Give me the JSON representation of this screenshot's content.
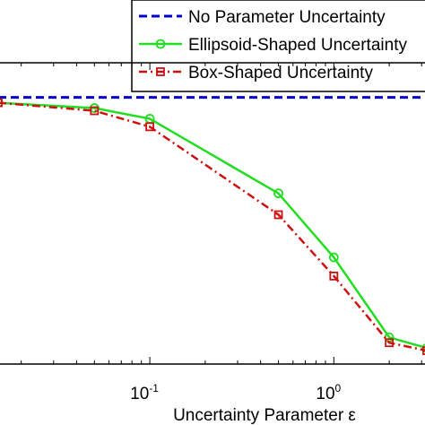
{
  "chart_data": {
    "type": "line",
    "xlabel": "Uncertainty Parameter ε",
    "ylabel": "",
    "x_scale": "log",
    "xlim": [
      0.015,
      3.2
    ],
    "ylim": [
      0,
      1.13
    ],
    "grid": false,
    "legend_placement": "top-right",
    "x_ticks": [
      {
        "value": 0.1,
        "base": "10",
        "exponent": "-1"
      },
      {
        "value": 1,
        "base": "10",
        "exponent": "0"
      }
    ],
    "series": [
      {
        "name": "No Parameter Uncertainty",
        "color": "#0000cc",
        "line_style": "dashed",
        "marker": "none",
        "x": [
          0.015,
          3.2
        ],
        "y": [
          1.0,
          1.0
        ]
      },
      {
        "name": "Ellipsoid-Shaped Uncertainty",
        "color": "#22dd22",
        "line_style": "solid",
        "marker": "circle",
        "x": [
          0.015,
          0.05,
          0.1,
          0.5,
          1,
          2,
          3.2
        ],
        "y": [
          0.98,
          0.96,
          0.92,
          0.64,
          0.4,
          0.1,
          0.06
        ]
      },
      {
        "name": "Box-Shaped Uncertainty",
        "color": "#cc1111",
        "line_style": "dashdot",
        "marker": "square",
        "x": [
          0.015,
          0.05,
          0.1,
          0.5,
          1,
          2,
          3.2
        ],
        "y": [
          0.98,
          0.95,
          0.89,
          0.56,
          0.33,
          0.08,
          0.05
        ]
      }
    ]
  }
}
